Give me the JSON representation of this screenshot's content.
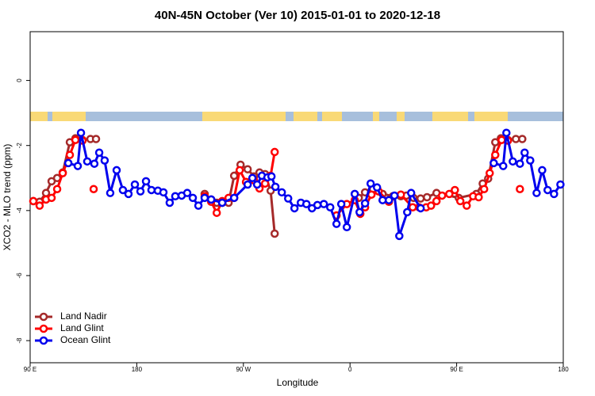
{
  "chart_data": {
    "type": "line",
    "title": "40N-45N October (Ver 10)   2015-01-01 to 2020-12-18",
    "xlabel": "Longitude",
    "ylabel": "XCO2 - MLO trend (ppm)",
    "xlim": [
      90,
      540
    ],
    "ylim": [
      -8.68,
      1.5
    ],
    "xticks": [
      {
        "value": 90,
        "label": "90 E"
      },
      180,
      {
        "value": 270,
        "label": "90 W"
      },
      {
        "value": 360,
        "label": "0"
      },
      {
        "value": 450,
        "label": "90 E"
      },
      {
        "value": 540,
        "label": "180"
      }
    ],
    "yticks": [
      -8,
      -6,
      -4,
      -2,
      0
    ],
    "legend": "bottom-left",
    "series": [
      {
        "name": "Land Nadir",
        "color": "#a52a2a",
        "x": [
          92.7,
          98.0,
          103.4,
          108.1,
          112.8,
          117.5,
          123.5,
          128.2,
          134.2,
          140.9,
          145.6,
          null,
          237.3,
          242.8,
          247.5,
          252.1,
          257.5,
          262.2,
          267.6,
          273.6,
          278.9,
          283.6,
          288.3,
          293.0,
          296.4,
          null,
          367.4,
          372.7,
          379.4,
          387.5,
          396.2,
          402.9,
          407.6,
          413.6,
          419.6,
          425.0,
          433.0,
          451.8,
          466.6,
          472.0,
          476.6,
          482.6,
          487.3,
          493.3,
          500.0,
          505.4
        ],
        "values": [
          -3.71,
          -3.73,
          -3.46,
          -3.1,
          -3.0,
          -2.83,
          -1.9,
          -1.78,
          -1.83,
          -1.8,
          -1.8,
          null,
          -3.49,
          -3.66,
          -3.76,
          -3.76,
          -3.76,
          -2.93,
          -2.59,
          -2.73,
          -2.95,
          -2.83,
          -2.88,
          -3.39,
          -4.71,
          null,
          -3.61,
          -3.44,
          -3.34,
          -3.49,
          -3.56,
          -3.56,
          -3.54,
          -3.61,
          -3.63,
          -3.59,
          -3.46,
          -3.61,
          -3.49,
          -3.17,
          -3.02,
          -1.9,
          -1.78,
          -1.83,
          -1.8,
          -1.8
        ]
      },
      {
        "name": "Land Glint",
        "color": "#ff0000",
        "x": [
          92.7,
          98.0,
          103.4,
          108.1,
          112.8,
          117.5,
          123.5,
          128.2,
          134.2,
          null,
          143.6,
          null,
          237.3,
          242.8,
          247.5,
          252.1,
          257.5,
          262.2,
          266.9,
          272.2,
          278.9,
          283.6,
          288.3,
          293.0,
          296.4,
          null,
          348.6,
          357.3,
          364.0,
          368.7,
          372.7,
          378.1,
          384.1,
          392.8,
          402.9,
          412.9,
          418.3,
          424.3,
          428.4,
          433.0,
          437.7,
          443.8,
          448.5,
          453.1,
          458.5,
          463.9,
          468.6,
          473.2,
          477.9,
          482.6,
          488.0,
          493.3,
          null,
          503.4
        ],
        "values": [
          -3.71,
          -3.85,
          -3.66,
          -3.61,
          -3.34,
          -2.85,
          -2.29,
          -1.83,
          -1.85,
          null,
          -3.34,
          null,
          -3.56,
          -3.73,
          -4.07,
          -3.71,
          -3.61,
          -3.61,
          -2.76,
          -3.12,
          -3.07,
          -3.32,
          -3.17,
          -2.93,
          -2.2,
          null,
          -4.15,
          -3.8,
          -3.68,
          -4.1,
          -3.9,
          -3.51,
          -3.41,
          -3.73,
          -3.51,
          -3.9,
          -3.9,
          -3.9,
          -3.85,
          -3.71,
          -3.54,
          -3.49,
          -3.37,
          -3.71,
          -3.85,
          -3.56,
          -3.59,
          -3.34,
          -2.85,
          -2.29,
          -1.83,
          -1.85,
          null,
          -3.34
        ]
      },
      {
        "name": "Ocean Glint",
        "color": "#0000ee",
        "x": [
          122.2,
          130.2,
          132.9,
          138.2,
          144.2,
          148.3,
          152.9,
          157.6,
          163.0,
          168.3,
          173.0,
          178.4,
          183.1,
          187.8,
          192.4,
          197.8,
          202.5,
          207.8,
          212.5,
          217.9,
          222.6,
          227.3,
          232.0,
          237.3,
          242.8,
          252.1,
          262.2,
          273.6,
          277.6,
          281.6,
          285.6,
          290.3,
          293.7,
          297.0,
          302.4,
          307.8,
          313.1,
          318.5,
          323.2,
          327.9,
          332.5,
          337.9,
          343.3,
          348.6,
          352.6,
          357.3,
          364.0,
          368.1,
          372.7,
          377.4,
          382.8,
          387.5,
          392.8,
          397.5,
          401.6,
          408.3,
          411.6,
          419.6,
          null,
          481.3,
          489.3,
          492.0,
          497.4,
          503.4,
          507.4,
          512.1,
          517.5,
          522.2,
          526.8,
          532.2,
          537.6
        ],
        "values": [
          -2.54,
          -2.63,
          -1.61,
          -2.49,
          -2.56,
          -2.22,
          -2.46,
          -3.46,
          -2.76,
          -3.37,
          -3.49,
          -3.2,
          -3.41,
          -3.1,
          -3.37,
          -3.39,
          -3.44,
          -3.76,
          -3.56,
          -3.54,
          -3.46,
          -3.61,
          -3.85,
          -3.61,
          -3.66,
          -3.76,
          -3.61,
          -3.2,
          -3.0,
          -3.2,
          -2.93,
          -2.98,
          -2.95,
          -3.27,
          -3.44,
          -3.63,
          -3.93,
          -3.76,
          -3.8,
          -3.93,
          -3.83,
          -3.8,
          -3.9,
          -4.41,
          -3.8,
          -4.51,
          -3.49,
          -4.05,
          -3.78,
          -3.17,
          -3.29,
          -3.68,
          -3.68,
          -3.54,
          -4.78,
          -4.05,
          -3.46,
          -3.93,
          null,
          -2.54,
          -2.63,
          -1.61,
          -2.49,
          -2.56,
          -2.22,
          -2.46,
          -3.46,
          -2.76,
          -3.37,
          -3.49,
          -3.2
        ]
      }
    ]
  }
}
